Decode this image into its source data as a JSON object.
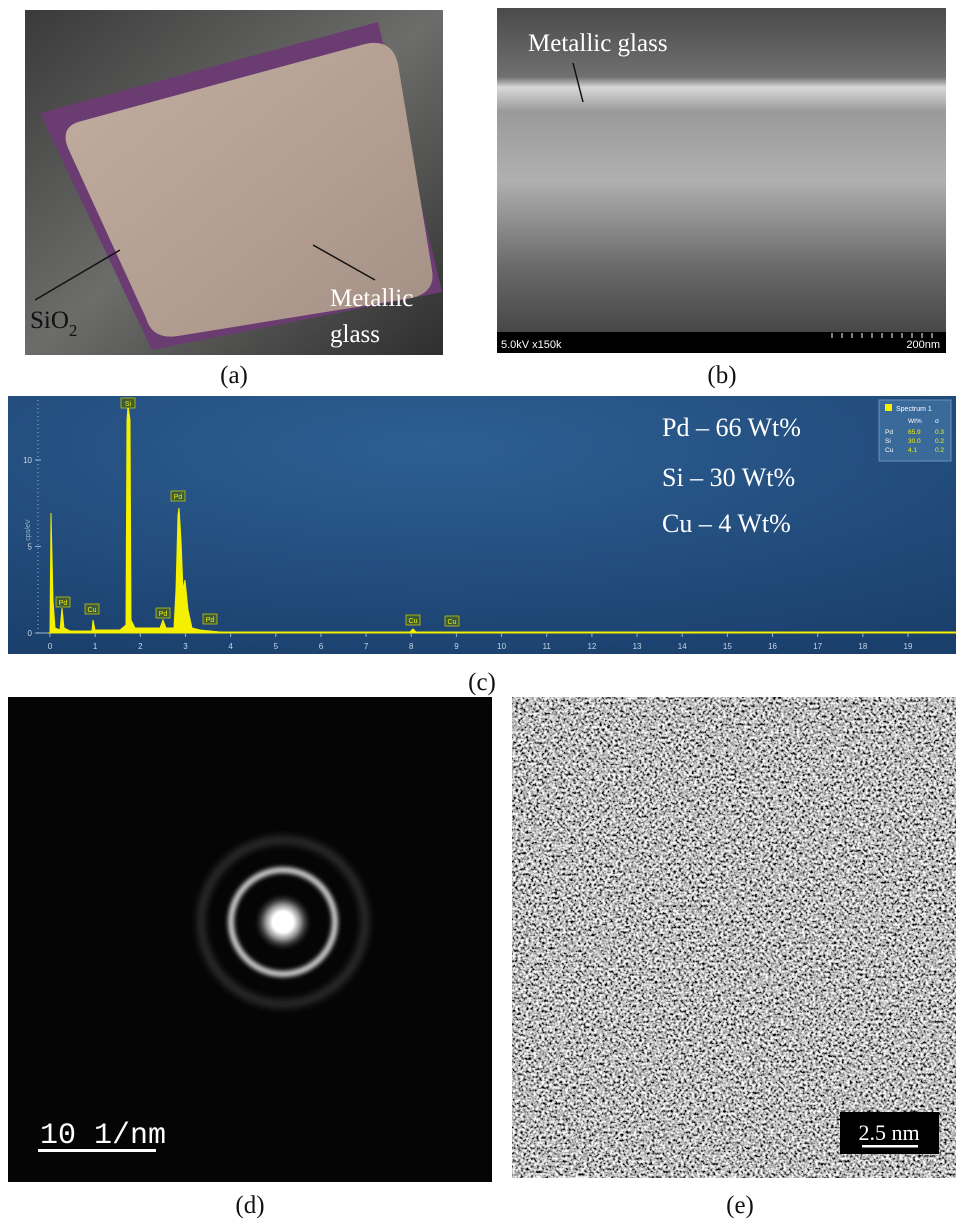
{
  "figure": {
    "a": {
      "caption": "(a)",
      "sio2": "SiO",
      "sio2_subscript": "2",
      "metallic_glass_line1": "Metallic",
      "metallic_glass_line2": "glass"
    },
    "b": {
      "caption": "(b)",
      "label": "Metallic glass",
      "info_bar": "5.0kV x150k",
      "scale_bar": "200nm"
    },
    "c": {
      "caption": "(c)",
      "y_axis_label": "cps/eV",
      "xticks": [
        0,
        1,
        2,
        3,
        4,
        5,
        6,
        7,
        8,
        9,
        10,
        11,
        12,
        13,
        14,
        15,
        16,
        17,
        18,
        19
      ],
      "yticks": [
        0,
        5,
        10
      ],
      "peak_labels": [
        "Si",
        "Pd",
        "Pd",
        "Cu",
        "Pd",
        "Pd",
        "Cu",
        "Cu"
      ],
      "composition": [
        "Pd – 66 Wt%",
        "Si – 30 Wt%",
        "Cu – 4 Wt%"
      ],
      "legend": {
        "title": "Spectrum 1",
        "header": [
          "Wt%",
          "σ"
        ],
        "rows": [
          [
            "Pd",
            "65.9",
            "0.3"
          ],
          [
            "Si",
            "30.0",
            "0.2"
          ],
          [
            "Cu",
            "4.1",
            "0.2"
          ]
        ]
      }
    },
    "d": {
      "caption": "(d)",
      "scale_bar": "10 1/nm"
    },
    "e": {
      "caption": "(e)",
      "scale_bar": "2.5 nm"
    }
  }
}
